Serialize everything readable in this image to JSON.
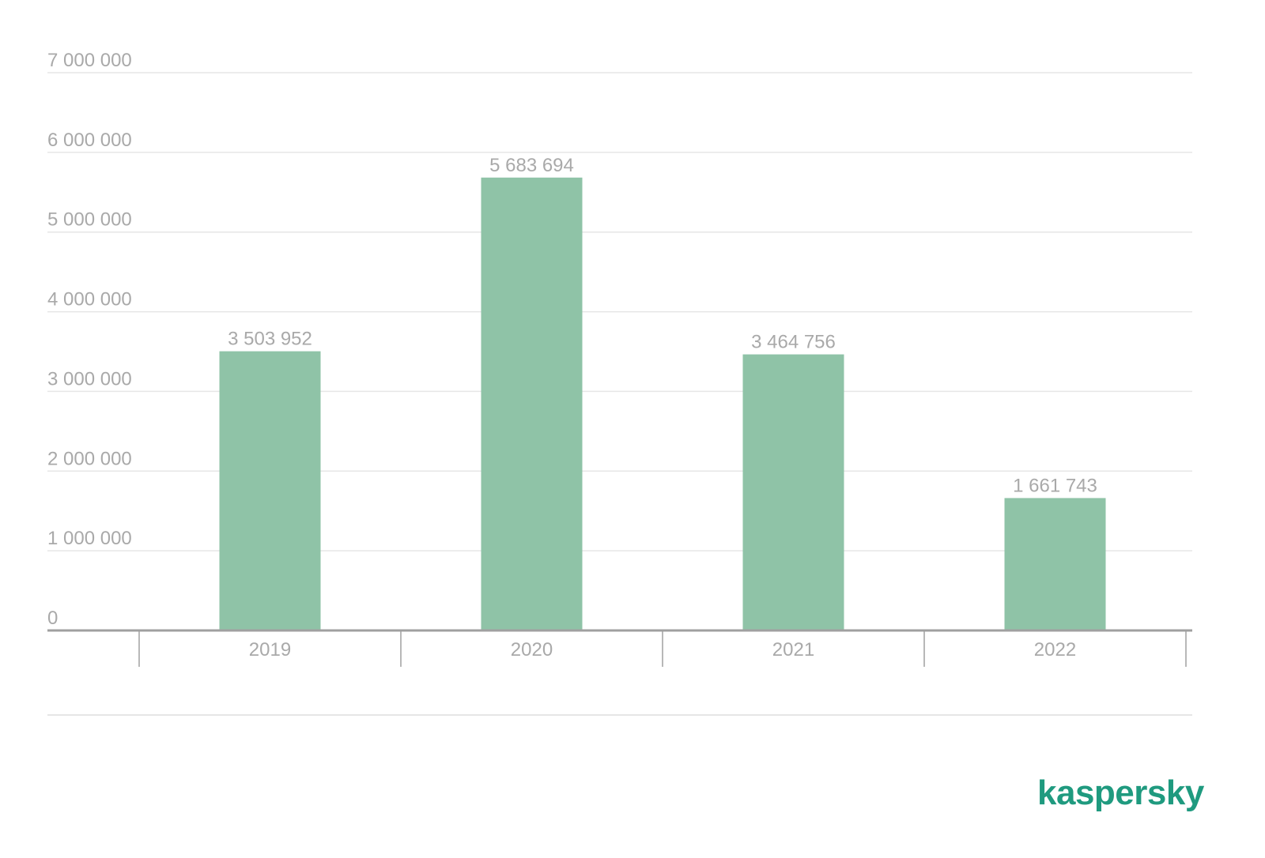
{
  "chart_data": {
    "type": "bar",
    "title": "",
    "xlabel": "",
    "ylabel": "",
    "categories": [
      "2019",
      "2020",
      "2021",
      "2022"
    ],
    "values": [
      3503952,
      5683694,
      3464756,
      1661743
    ],
    "value_labels": [
      "3 503 952",
      "5 683 694",
      "3 464 756",
      "1 661 743"
    ],
    "ylim": [
      0,
      7000000
    ],
    "y_ticks": [
      0,
      1000000,
      2000000,
      3000000,
      4000000,
      5000000,
      6000000,
      7000000
    ],
    "y_tick_labels": [
      "0",
      "1 000 000",
      "2 000 000",
      "3 000 000",
      "4 000 000",
      "5 000 000",
      "6 000 000",
      "7 000 000"
    ],
    "grid": true,
    "legend": "none",
    "colors": {
      "bar": "#8fc3a7",
      "grid": "#e6e6e6",
      "axis": "#a0a0a0",
      "text": "#a9a9a9"
    }
  },
  "brand": {
    "logo_text": "kaspersky",
    "logo_color": "#1f9a7f"
  }
}
